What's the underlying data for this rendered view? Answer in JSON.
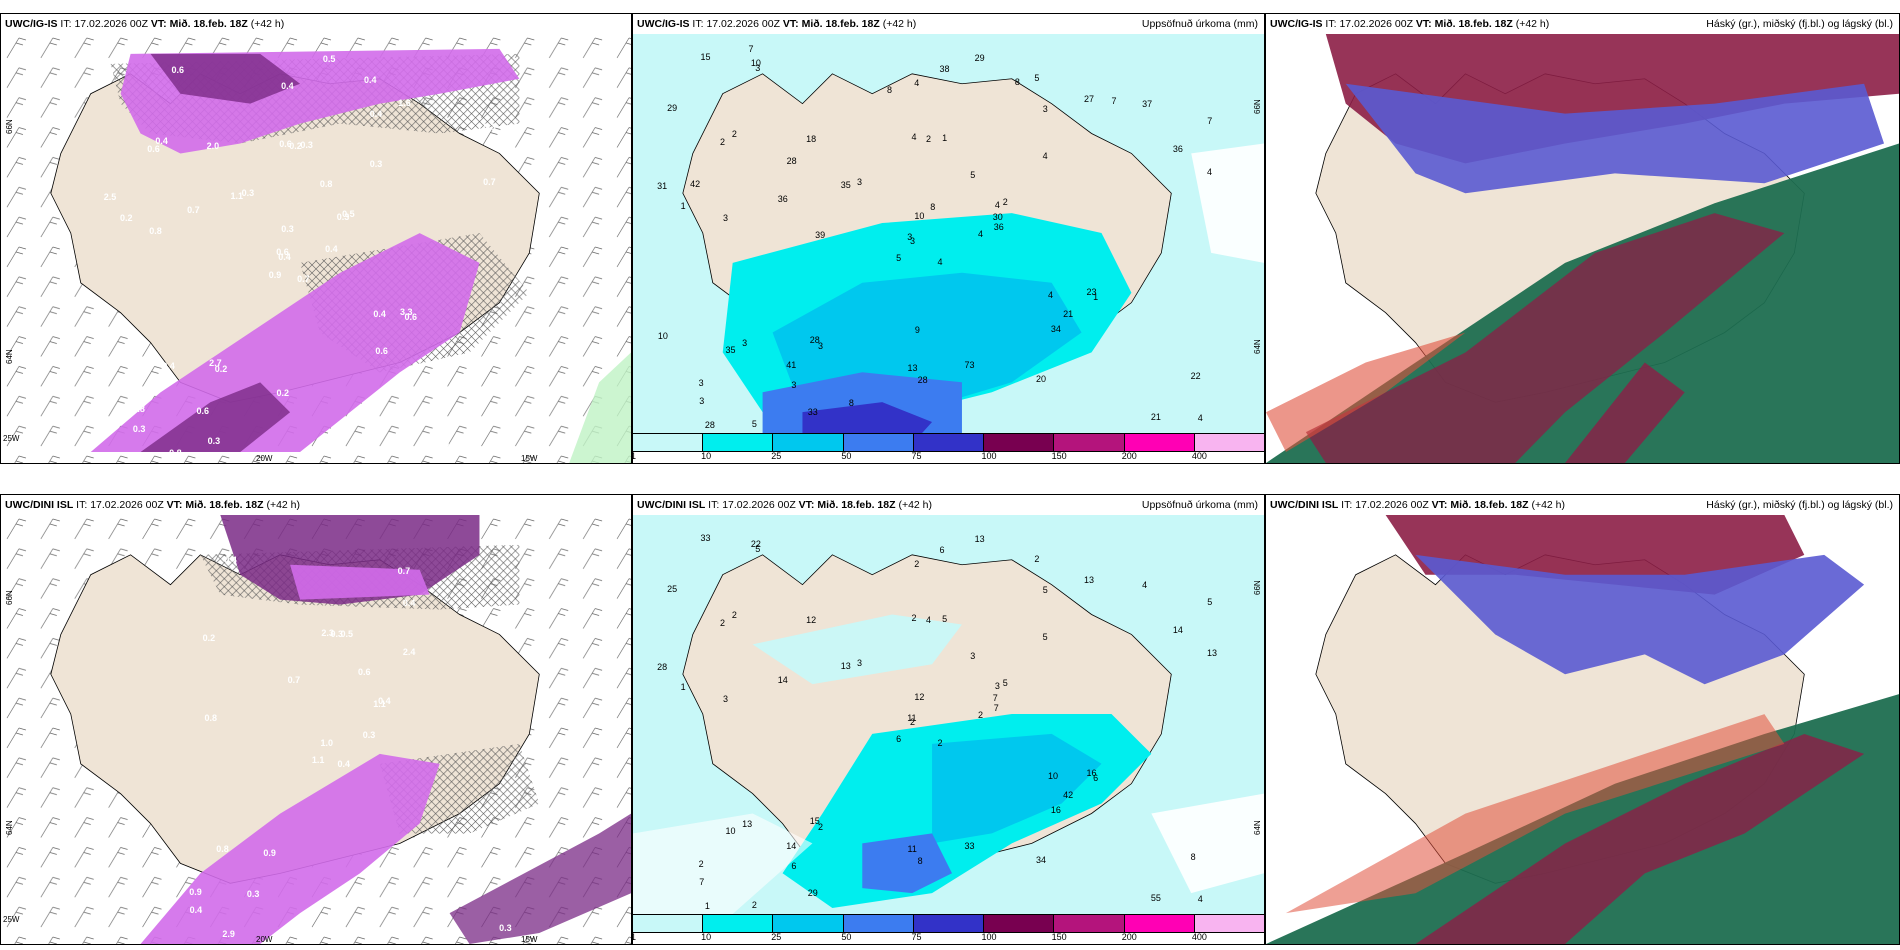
{
  "top_row": {
    "panel_left": {
      "model": "UWC/IG-IS",
      "it_label": "IT:",
      "it_value": "17.02.2026 00Z",
      "vt_label": "VT:",
      "vt_value": "Mið. 18.feb. 18Z",
      "lead": "(+42 h)",
      "lat_labels": [
        "66N",
        "64N"
      ],
      "lon_labels": [
        "25W",
        "20W",
        "15W"
      ]
    },
    "panel_mid": {
      "model": "UWC/IG-IS",
      "it_label": "IT:",
      "it_value": "17.02.2026 00Z",
      "vt_label": "VT:",
      "vt_value": "Mið. 18.feb. 18Z",
      "lead": "(+42 h)",
      "variable": "Uppsöfnuð úrkoma (mm)",
      "lat_labels": [
        "66N",
        "64N"
      ]
    },
    "panel_right": {
      "model": "UWC/IG-IS",
      "it_label": "IT:",
      "it_value": "17.02.2026 00Z",
      "vt_label": "VT:",
      "vt_value": "Mið. 18.feb. 18Z",
      "lead": "(+42 h)",
      "variable": "Háský (gr.), miðský (fj.bl.) og lágský (bl.)"
    }
  },
  "bottom_row": {
    "panel_left": {
      "model": "UWC/DINI ISL",
      "it_label": "IT:",
      "it_value": "17.02.2026 00Z",
      "vt_label": "VT:",
      "vt_value": "Mið. 18.feb. 18Z",
      "lead": "(+42 h)",
      "lat_labels": [
        "66N",
        "64N"
      ],
      "lon_labels": [
        "25W",
        "20W",
        "15W"
      ]
    },
    "panel_mid": {
      "model": "UWC/DINI ISL",
      "it_label": "IT:",
      "it_value": "17.02.2026 00Z",
      "vt_label": "VT:",
      "vt_value": "Mið. 18.feb. 18Z",
      "lead": "(+42 h)",
      "variable": "Uppsöfnuð úrkoma (mm)",
      "lat_labels": [
        "66N",
        "64N"
      ]
    },
    "panel_right": {
      "model": "UWC/DINI ISL",
      "it_label": "IT:",
      "it_value": "17.02.2026 00Z",
      "vt_label": "VT:",
      "vt_value": "Mið. 18.feb. 18Z",
      "lead": "(+42 h)",
      "variable": "Háský (gr.), miðský (fj.bl.) og lágský (bl.)"
    }
  },
  "precip_colorbar": {
    "ticks": [
      "1",
      "10",
      "25",
      "50",
      "75",
      "100",
      "150",
      "200",
      "400"
    ],
    "colors": [
      "#c8f8f8",
      "#00eeee",
      "#00c8ee",
      "#3c7cf0",
      "#3232c8",
      "#780050",
      "#b4147c",
      "#ff00b4",
      "#f8b4f0"
    ]
  },
  "colors": {
    "land": "#efe4d6",
    "snow": "#d26cea",
    "snow_dark": "#7a2a86",
    "high_cloud": "#1e6e50",
    "mid_cloud": "#8c1e46",
    "low_cloud": "#5a5ad2",
    "light_precip": "#c8f8f8"
  },
  "top_left_values": [
    "0.7",
    "0.6",
    "0.4",
    "0.8",
    "0.3",
    "0.2",
    "0.4",
    "0.3",
    "0.4",
    "0.4",
    "0.6",
    "1.0",
    "0.8",
    "0.3",
    "0.9",
    "0.3",
    "0.8",
    "0.6",
    "0.8",
    "0.4",
    "0.3",
    "0.3",
    "0.6",
    "0.2",
    "0.5",
    "0.6",
    "0.4",
    "0.4",
    "0.2",
    "0.4",
    "0.7",
    "0.6",
    "0.2",
    "0.3",
    "2.0",
    "1.6",
    "2.7",
    "2.5",
    "3.0",
    "3.3",
    "0.5",
    "1.1",
    "0.7",
    "0.6",
    "0.3",
    "2.5"
  ],
  "top_mid_values": [
    "4",
    "2",
    "3",
    "3",
    "4",
    "3",
    "5",
    "1",
    "3",
    "4",
    "3",
    "4",
    "3",
    "7",
    "5",
    "4",
    "5",
    "4",
    "5",
    "3",
    "3",
    "3",
    "3",
    "2",
    "2",
    "1",
    "2",
    "4",
    "1",
    "4",
    "4",
    "3",
    "13",
    "10",
    "18",
    "27",
    "28",
    "21",
    "22",
    "23",
    "29",
    "35",
    "36",
    "34",
    "33",
    "31",
    "30",
    "28",
    "28",
    "36",
    "35",
    "36",
    "29",
    "21",
    "20",
    "41",
    "10",
    "15",
    "73",
    "37",
    "38",
    "39",
    "42",
    "28",
    "7",
    "7",
    "8",
    "8",
    "8",
    "10",
    "9",
    "8"
  ],
  "bottom_left_values": [
    "0.4",
    "0.2",
    "1.0",
    "0.9",
    "1.1",
    "0.9",
    "0.7",
    "0.5",
    "0.4",
    "0.3",
    "0.4",
    "0.3",
    "0.8",
    "0.9",
    "1.1",
    "2.4",
    "2.9",
    "2.3",
    "0.6",
    "0.8",
    "0.7",
    "0.4",
    "0.3",
    "0.3",
    "0.4"
  ],
  "bottom_mid_values": [
    "2",
    "2",
    "2",
    "2",
    "3",
    "2",
    "2",
    "5",
    "5",
    "2",
    "5",
    "4",
    "3",
    "5",
    "6",
    "5",
    "2",
    "2",
    "3",
    "13",
    "3",
    "7",
    "6",
    "4",
    "5",
    "6",
    "2",
    "2",
    "1",
    "10",
    "13",
    "11",
    "11",
    "12",
    "12",
    "13",
    "15",
    "55",
    "8",
    "16",
    "13",
    "13",
    "14",
    "16",
    "29",
    "28",
    "7",
    "1",
    "8",
    "7",
    "10",
    "14",
    "25",
    "42",
    "34",
    "14",
    "22",
    "33",
    "33",
    "4",
    "6"
  ]
}
